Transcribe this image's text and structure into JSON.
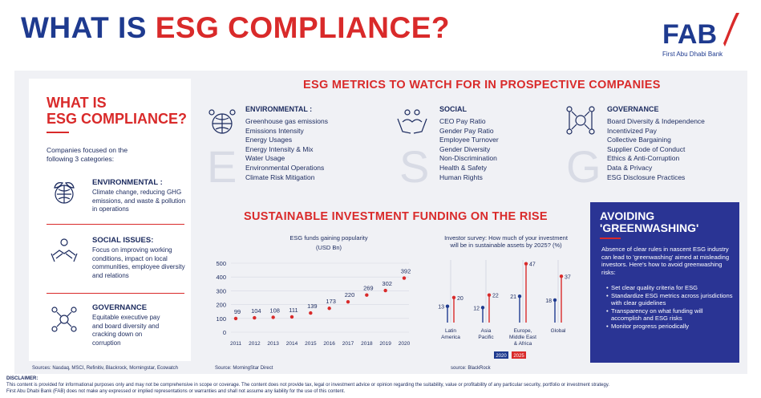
{
  "header": {
    "title_part1": "WHAT IS ",
    "title_part2": "ESG COMPLIANCE?",
    "logo_text": "FAB",
    "logo_sub": "First Abu Dhabi Bank"
  },
  "left_card": {
    "title_line1": "WHAT IS",
    "title_line2": "ESG COMPLIANCE?",
    "intro": "Companies focused on the following 3 categories:",
    "categories": [
      {
        "title": "ENVIRONMENTAL :",
        "desc": "Climate change, reducing GHG emissions, and waste & pollution in operations",
        "icon": "globe-leaves-icon"
      },
      {
        "title": "SOCIAL ISSUES:",
        "desc": "Focus on improving working conditions, impact on local communities, employee diversity and relations",
        "icon": "handshake-icon"
      },
      {
        "title": "GOVERNANCE",
        "desc": "Equitable executive pay and board diversity and cracking down on corruption",
        "icon": "network-people-icon"
      }
    ],
    "sources": "Sources: Nasdaq, MSCI, Refinitiv, Blackrock, Morningstar, Ecowatch"
  },
  "metrics": {
    "title": "ESG METRICS TO WATCH FOR IN PROSPECTIVE COMPANIES",
    "columns": [
      {
        "letter": "E",
        "head": "ENVIRONMENTAL :",
        "icon": "globe-people-icon",
        "items": [
          "Greenhouse gas emissions",
          "Emissions Intensity",
          "Energy Usages",
          "Energy Intensity & Mix",
          "Water Usage",
          "Environmental Operations",
          "Climate Risk Mitigation"
        ]
      },
      {
        "letter": "S",
        "head": "SOCIAL",
        "icon": "hands-people-icon",
        "items": [
          "CEO Pay Ratio",
          "Gender Pay Ratio",
          "Employee Turnover",
          "Gender Diversity",
          "Non-Discrimination",
          "Health & Safety",
          "Human Rights"
        ]
      },
      {
        "letter": "G",
        "head": "GOVERNANCE",
        "icon": "connected-people-icon",
        "items": [
          "Board Diversity & Independence",
          "Incentivized Pay",
          "Collective Bargaining",
          "Supplier Code of Conduct",
          "Ethics & Anti-Corruption",
          "Data & Privacy",
          "ESG Disclosure Practices"
        ]
      }
    ]
  },
  "funding": {
    "title": "SUSTAINABLE INVESTMENT FUNDING ON THE RISE"
  },
  "chart_data": [
    {
      "type": "scatter",
      "title": "ESG funds gaining popularity",
      "subtitle": "(USD Bn)",
      "x": [
        "2011",
        "2012",
        "2013",
        "2014",
        "2015",
        "2016",
        "2017",
        "2018",
        "2019",
        "2020"
      ],
      "values": [
        99,
        104,
        108,
        111,
        139,
        173,
        220,
        269,
        302,
        392
      ],
      "yticks": [
        0,
        100,
        200,
        300,
        400,
        500
      ],
      "ylim": [
        0,
        500
      ],
      "grid": true,
      "color": "#d92a2a",
      "source": "Source: MorningStar Direct"
    },
    {
      "type": "bar",
      "title": "Investor survey: How much of your investment will be in sustainable assets by 2025? (%)",
      "categories": [
        "Latin America",
        "Asia Pacific",
        "Europe, Middle East & Africa",
        "Global"
      ],
      "series": [
        {
          "name": "2020",
          "values": [
            13,
            12,
            21,
            18
          ],
          "color": "#1e3a8f"
        },
        {
          "name": "2025",
          "values": [
            20,
            22,
            47,
            37
          ],
          "color": "#d92a2a"
        }
      ],
      "ylim": [
        0,
        50
      ],
      "source": "source: BlackRock"
    }
  ],
  "greenwashing": {
    "title_line1": "AVOIDING",
    "title_line2": "'GREENWASHING'",
    "text": "Absence of clear rules in nascent ESG industry can lead to 'greenwashing' aimed at misleading investors. Here's how to avoid greenwashing risks:",
    "items": [
      "Set clear quality criteria for ESG",
      "Standardize ESG metrics across jurisdictions with clear guidelines",
      "Transparency on what funding will accomplish and ESG risks",
      "Monitor progress periodically"
    ]
  },
  "disclaimer": {
    "title": "DISCLAIMER:",
    "line1": "This content is provided for informational purposes only and may not be comprehensive in scope or coverage. The content does not provide tax, legal or investment advice or opinion regarding the suitability, value or profitability of any particular security, portfolio or investment strategy.",
    "line2": "First Abu Dhabi Bank (FAB) does not make any expressed or implied representations or warranties and shall not assume any liability for the use of this content."
  },
  "colors": {
    "navy": "#1e3a8f",
    "red": "#d92a2a",
    "panel": "#f0f1f5",
    "greenwash_bg": "#2a3494"
  }
}
